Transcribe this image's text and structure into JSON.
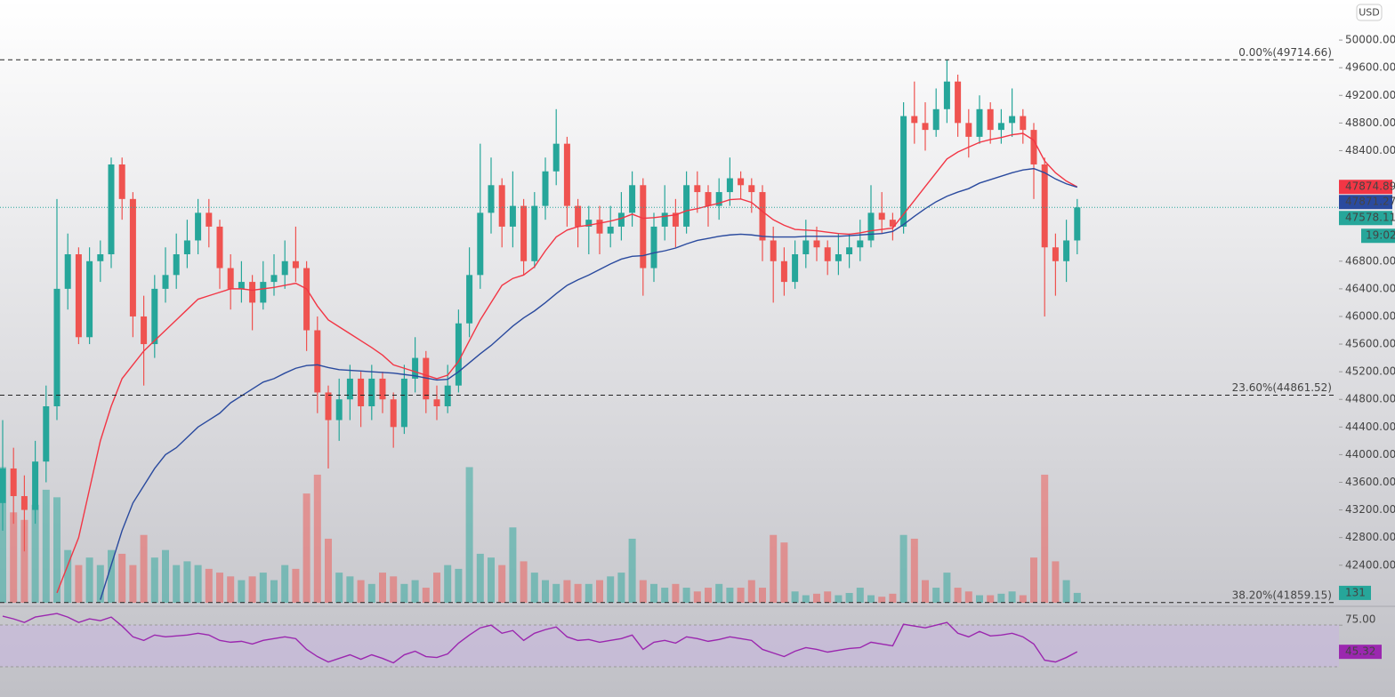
{
  "chart_data": {
    "type": "candlestick",
    "currency": "USD",
    "countdown": "19:02",
    "up_color": "#26a69a",
    "down_color": "#ef5350",
    "ylim": [
      41850,
      50580
    ],
    "yticks": [
      {
        "value": 50000,
        "label": "50000.00"
      },
      {
        "value": 49600,
        "label": "49600.00"
      },
      {
        "value": 49200,
        "label": "49200.00"
      },
      {
        "value": 48800,
        "label": "48800.00"
      },
      {
        "value": 48400,
        "label": "48400.00"
      },
      {
        "value": 46800,
        "label": "46800.00"
      },
      {
        "value": 46400,
        "label": "46400.00"
      },
      {
        "value": 46000,
        "label": "46000.00"
      },
      {
        "value": 45600,
        "label": "45600.00"
      },
      {
        "value": 45200,
        "label": "45200.00"
      },
      {
        "value": 44800,
        "label": "44800.00"
      },
      {
        "value": 44400,
        "label": "44400.00"
      },
      {
        "value": 44000,
        "label": "44000.00"
      },
      {
        "value": 43600,
        "label": "43600.00"
      },
      {
        "value": 43200,
        "label": "43200.00"
      },
      {
        "value": 42800,
        "label": "42800.00"
      },
      {
        "value": 42400,
        "label": "42400.00"
      }
    ],
    "fib_levels": [
      {
        "value": 49714.66,
        "label": "0.00%(49714.66)"
      },
      {
        "value": 44861.52,
        "label": "23.60%(44861.52)"
      },
      {
        "value": 41859.15,
        "label": "38.20%(41859.15)"
      }
    ],
    "open": [
      43300,
      43800,
      43400,
      43200,
      43900,
      44700,
      46400,
      46900,
      45700,
      46800,
      46900,
      48200,
      47700,
      46000,
      45600,
      46400,
      46600,
      46900,
      47100,
      47500,
      47300,
      46700,
      46400,
      46500,
      46200,
      46500,
      46600,
      46800,
      46700,
      45800,
      44900,
      44500,
      44800,
      45100,
      44700,
      45100,
      44800,
      44400,
      45100,
      45400,
      44800,
      44700,
      45000,
      45900,
      46600,
      47500,
      47900,
      47300,
      47600,
      46800,
      47600,
      48100,
      48500,
      47600,
      47300,
      47400,
      47200,
      47300,
      47500,
      47900,
      46700,
      47300,
      47500,
      47300,
      47900,
      47800,
      47600,
      47800,
      48000,
      47900,
      47800,
      47100,
      46800,
      46500,
      46900,
      47100,
      47000,
      46800,
      46900,
      47000,
      47100,
      47500,
      47400,
      47300,
      48900,
      48800,
      48700,
      49000,
      49400,
      48800,
      48600,
      49000,
      48700,
      48800,
      48900,
      48700,
      48200,
      47000,
      46800,
      47100
    ],
    "high": [
      44500,
      44100,
      43700,
      44200,
      45000,
      47700,
      47200,
      47000,
      47000,
      47100,
      48300,
      48300,
      47800,
      46300,
      46600,
      47000,
      47200,
      47400,
      47700,
      47700,
      47400,
      46900,
      46800,
      46600,
      46800,
      46900,
      47100,
      47300,
      46800,
      46000,
      45000,
      45100,
      45300,
      45200,
      45300,
      45200,
      44900,
      45300,
      45700,
      45500,
      45000,
      45300,
      46100,
      47000,
      48500,
      48300,
      48000,
      48100,
      47700,
      47800,
      48300,
      49000,
      48600,
      47700,
      47600,
      47600,
      47600,
      47800,
      48100,
      48000,
      47500,
      47900,
      47700,
      48100,
      48100,
      47900,
      48000,
      48300,
      48100,
      48000,
      47900,
      47300,
      47000,
      47100,
      47400,
      47300,
      47100,
      47200,
      47200,
      47400,
      47900,
      47800,
      47500,
      49100,
      49400,
      49100,
      49300,
      49714.66,
      49500,
      49000,
      49200,
      49100,
      49000,
      49300,
      49000,
      48800,
      48300,
      47200,
      47400,
      47700
    ],
    "low": [
      42900,
      43000,
      42600,
      43000,
      43600,
      44500,
      46100,
      45600,
      45600,
      46500,
      46700,
      47400,
      45700,
      45000,
      45400,
      46200,
      46400,
      46700,
      46900,
      47000,
      46400,
      46100,
      46200,
      45800,
      46100,
      46300,
      46400,
      46500,
      45500,
      44600,
      43800,
      44200,
      44500,
      44400,
      44500,
      44600,
      44100,
      44300,
      44900,
      44600,
      44500,
      44600,
      44900,
      45700,
      46400,
      47200,
      47000,
      47000,
      46600,
      46700,
      47400,
      47900,
      47300,
      47000,
      46900,
      46900,
      47000,
      47100,
      47300,
      46300,
      46500,
      47100,
      47000,
      47200,
      47500,
      47300,
      47400,
      47600,
      47700,
      47500,
      46800,
      46200,
      46300,
      46400,
      46700,
      46800,
      46600,
      46600,
      46700,
      46800,
      47000,
      47200,
      47100,
      47200,
      48500,
      48400,
      48600,
      48800,
      48600,
      48300,
      48500,
      48500,
      48500,
      48600,
      48500,
      47700,
      46000,
      46300,
      46500,
      46900
    ],
    "close": [
      43800,
      43400,
      43200,
      43900,
      44700,
      46400,
      46900,
      45700,
      46800,
      46900,
      48200,
      47700,
      46000,
      45600,
      46400,
      46600,
      46900,
      47100,
      47500,
      47300,
      46700,
      46400,
      46500,
      46200,
      46500,
      46600,
      46800,
      46700,
      45800,
      44900,
      44500,
      44800,
      45100,
      44700,
      45100,
      44800,
      44400,
      45100,
      45400,
      44800,
      44700,
      45000,
      45900,
      46600,
      47500,
      47900,
      47300,
      47600,
      46800,
      47600,
      48100,
      48500,
      47600,
      47300,
      47400,
      47200,
      47300,
      47500,
      47900,
      46700,
      47300,
      47500,
      47300,
      47900,
      47800,
      47600,
      47800,
      48000,
      47900,
      47800,
      47100,
      46800,
      46500,
      46900,
      47100,
      47000,
      46800,
      46900,
      47000,
      47100,
      47500,
      47400,
      47300,
      48900,
      48800,
      48700,
      49000,
      49400,
      48800,
      48600,
      49000,
      48700,
      48800,
      48900,
      48700,
      48200,
      47000,
      46800,
      47100,
      47578.11
    ],
    "volume": [
      1800,
      1200,
      1100,
      1300,
      1500,
      1400,
      700,
      500,
      600,
      500,
      700,
      650,
      500,
      900,
      600,
      700,
      500,
      550,
      500,
      450,
      400,
      350,
      300,
      350,
      400,
      300,
      500,
      450,
      1450,
      1700,
      850,
      400,
      350,
      300,
      250,
      400,
      350,
      250,
      300,
      200,
      400,
      500,
      450,
      1800,
      650,
      600,
      500,
      1000,
      550,
      400,
      300,
      250,
      300,
      250,
      250,
      300,
      350,
      400,
      850,
      300,
      250,
      200,
      250,
      200,
      150,
      200,
      250,
      200,
      200,
      300,
      200,
      900,
      800,
      150,
      100,
      120,
      150,
      100,
      130,
      200,
      100,
      80,
      120,
      900,
      850,
      300,
      200,
      400,
      200,
      150,
      100,
      100,
      120,
      150,
      100,
      600,
      1700,
      550,
      300,
      131
    ],
    "volume_ylim": [
      0,
      8000
    ],
    "ma": [
      {
        "color": "#f23645",
        "values": [
          null,
          null,
          null,
          null,
          null,
          42000,
          42400,
          42800,
          43500,
          44200,
          44700,
          45100,
          45300,
          45500,
          45650,
          45800,
          45950,
          46100,
          46250,
          46300,
          46350,
          46400,
          46400,
          46380,
          46400,
          46420,
          46450,
          46480,
          46400,
          46150,
          45950,
          45850,
          45750,
          45650,
          45550,
          45440,
          45300,
          45250,
          45200,
          45150,
          45100,
          45150,
          45350,
          45650,
          45950,
          46200,
          46450,
          46550,
          46600,
          46720,
          46950,
          47150,
          47250,
          47300,
          47320,
          47350,
          47380,
          47420,
          47480,
          47420,
          47430,
          47450,
          47470,
          47530,
          47560,
          47600,
          47640,
          47690,
          47700,
          47650,
          47520,
          47400,
          47320,
          47260,
          47250,
          47240,
          47220,
          47200,
          47190,
          47210,
          47240,
          47260,
          47280,
          47480,
          47680,
          47880,
          48080,
          48280,
          48380,
          48450,
          48520,
          48560,
          48590,
          48630,
          48650,
          48550,
          48250,
          48080,
          47960,
          47874.89
        ]
      },
      {
        "color": "#2a4a9e",
        "values": [
          null,
          null,
          null,
          null,
          null,
          null,
          null,
          null,
          null,
          41900,
          42400,
          42900,
          43300,
          43550,
          43800,
          44000,
          44100,
          44250,
          44400,
          44500,
          44600,
          44750,
          44850,
          44950,
          45050,
          45100,
          45180,
          45250,
          45290,
          45300,
          45260,
          45230,
          45220,
          45210,
          45200,
          45190,
          45180,
          45160,
          45140,
          45110,
          45080,
          45090,
          45200,
          45330,
          45460,
          45580,
          45720,
          45860,
          45980,
          46080,
          46200,
          46330,
          46450,
          46530,
          46600,
          46680,
          46760,
          46830,
          46870,
          46880,
          46920,
          46950,
          46990,
          47050,
          47100,
          47130,
          47160,
          47180,
          47190,
          47180,
          47160,
          47150,
          47150,
          47150,
          47160,
          47160,
          47160,
          47160,
          47170,
          47180,
          47190,
          47200,
          47230,
          47330,
          47450,
          47560,
          47660,
          47740,
          47800,
          47850,
          47930,
          47980,
          48030,
          48080,
          48120,
          48140,
          48080,
          47990,
          47920,
          47871.27
        ]
      }
    ],
    "rsi": {
      "color": "#9b27af",
      "ylim": [
        -5,
        94
      ],
      "yticks": [
        {
          "value": 75,
          "label": "75.00"
        }
      ],
      "values": [
        85,
        82,
        78,
        84,
        86,
        88,
        84,
        78,
        82,
        80,
        84,
        74,
        62,
        58,
        64,
        62,
        63,
        64,
        66,
        64,
        58,
        56,
        57,
        54,
        58,
        60,
        62,
        60,
        48,
        40,
        34,
        38,
        42,
        37,
        42,
        38,
        33,
        42,
        46,
        40,
        39,
        43,
        55,
        64,
        72,
        75,
        66,
        69,
        58,
        66,
        70,
        73,
        62,
        58,
        59,
        56,
        58,
        60,
        64,
        48,
        56,
        58,
        55,
        62,
        60,
        57,
        59,
        62,
        60,
        58,
        48,
        44,
        40,
        46,
        50,
        48,
        45,
        47,
        49,
        50,
        56,
        54,
        52,
        76,
        74,
        72,
        75,
        78,
        66,
        62,
        68,
        63,
        64,
        66,
        62,
        54,
        36,
        34,
        39,
        45.32
      ]
    }
  }
}
